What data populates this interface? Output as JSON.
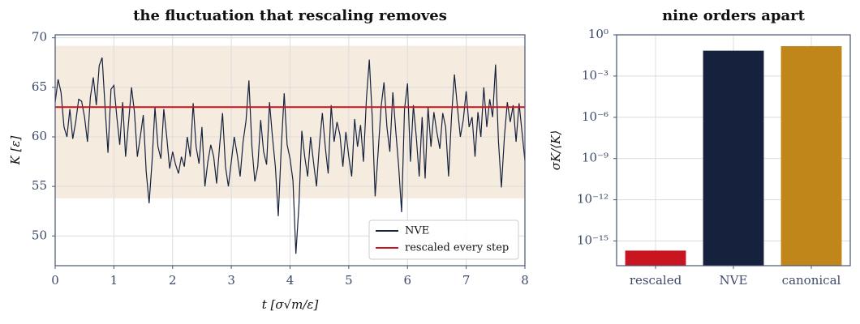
{
  "chart_data": [
    {
      "type": "line",
      "title": "the fluctuation that rescaling removes",
      "x_label": "t [σ√m/ε]",
      "y_label": "K [ε]",
      "xlim": [
        0,
        8
      ],
      "xticks": [
        0,
        1,
        2,
        3,
        4,
        5,
        6,
        7,
        8
      ],
      "ylim": [
        47,
        70.3
      ],
      "yticks": [
        50,
        55,
        60,
        65,
        70
      ],
      "grid": true,
      "legend": "lower right",
      "band": [
        53.8,
        69.2
      ],
      "band_color": "#f5ecdf",
      "x": [
        0,
        0.05,
        0.1,
        0.15,
        0.2,
        0.25,
        0.3,
        0.35,
        0.4,
        0.45,
        0.5,
        0.55,
        0.6,
        0.65,
        0.7,
        0.75,
        0.8,
        0.85,
        0.9,
        0.95,
        1,
        1.05,
        1.1,
        1.15,
        1.2,
        1.25,
        1.3,
        1.35,
        1.4,
        1.45,
        1.5,
        1.55,
        1.6,
        1.65,
        1.7,
        1.75,
        1.8,
        1.85,
        1.9,
        1.95,
        2,
        2.05,
        2.1,
        2.15,
        2.2,
        2.25,
        2.3,
        2.35,
        2.4,
        2.45,
        2.5,
        2.55,
        2.6,
        2.65,
        2.7,
        2.75,
        2.8,
        2.85,
        2.9,
        2.95,
        3,
        3.05,
        3.1,
        3.15,
        3.2,
        3.25,
        3.3,
        3.35,
        3.4,
        3.45,
        3.5,
        3.55,
        3.6,
        3.65,
        3.7,
        3.75,
        3.8,
        3.85,
        3.9,
        3.95,
        4,
        4.05,
        4.1,
        4.15,
        4.2,
        4.25,
        4.3,
        4.35,
        4.4,
        4.45,
        4.5,
        4.55,
        4.6,
        4.65,
        4.7,
        4.75,
        4.8,
        4.85,
        4.9,
        4.95,
        5,
        5.05,
        5.1,
        5.15,
        5.2,
        5.25,
        5.3,
        5.35,
        5.4,
        5.45,
        5.5,
        5.55,
        5.6,
        5.65,
        5.7,
        5.75,
        5.8,
        5.85,
        5.9,
        5.95,
        6,
        6.05,
        6.1,
        6.15,
        6.2,
        6.25,
        6.3,
        6.35,
        6.4,
        6.45,
        6.5,
        6.55,
        6.6,
        6.65,
        6.7,
        6.75,
        6.8,
        6.85,
        6.9,
        6.95,
        7,
        7.05,
        7.1,
        7.15,
        7.2,
        7.25,
        7.3,
        7.35,
        7.4,
        7.45,
        7.5,
        7.55,
        7.6,
        7.65,
        7.7,
        7.75,
        7.8,
        7.85,
        7.9,
        7.95,
        8
      ],
      "series": [
        {
          "name": "NVE",
          "color": "#16213e",
          "values": [
            63.5,
            65.8,
            64.5,
            61.0,
            60.0,
            62.8,
            59.8,
            61.5,
            63.8,
            63.6,
            62.0,
            59.5,
            64.0,
            66.0,
            63.2,
            67.2,
            68.0,
            63.0,
            58.4,
            64.8,
            65.2,
            62.0,
            59.2,
            63.5,
            58.0,
            61.5,
            65.0,
            62.5,
            58.0,
            60.0,
            62.2,
            56.5,
            53.3,
            57.5,
            63.0,
            59.0,
            57.8,
            62.8,
            60.0,
            56.8,
            58.5,
            57.2,
            56.3,
            58.0,
            57.0,
            60.0,
            58.0,
            63.4,
            59.0,
            57.3,
            61.0,
            55.0,
            57.5,
            59.2,
            58.0,
            55.3,
            59.0,
            62.4,
            57.0,
            55.0,
            57.5,
            60.0,
            58.2,
            56.0,
            59.5,
            61.6,
            65.7,
            59.0,
            55.5,
            57.0,
            61.7,
            58.5,
            57.2,
            63.5,
            60.0,
            57.0,
            52.0,
            58.8,
            64.4,
            59.2,
            57.8,
            55.6,
            48.2,
            53.0,
            60.6,
            58.0,
            56.0,
            60.0,
            57.4,
            55.0,
            59.2,
            62.4,
            59.0,
            56.3,
            63.2,
            59.5,
            61.5,
            60.2,
            57.0,
            60.5,
            58.0,
            56.0,
            61.8,
            59.0,
            61.2,
            57.5,
            63.8,
            67.8,
            62.0,
            54.0,
            58.5,
            63.0,
            65.5,
            61.0,
            58.5,
            64.5,
            60.6,
            57.0,
            52.4,
            62.8,
            65.4,
            57.5,
            63.2,
            60.0,
            56.0,
            62.0,
            55.8,
            63.0,
            59.0,
            62.5,
            60.5,
            58.8,
            62.4,
            61.0,
            56.0,
            62.0,
            66.3,
            63.0,
            60.0,
            61.7,
            64.6,
            61.0,
            62.0,
            58.0,
            62.5,
            60.0,
            65.0,
            61.0,
            63.8,
            62.0,
            67.3,
            59.5,
            54.9,
            60.0,
            63.5,
            61.5,
            63.2,
            59.5,
            63.4,
            60.5,
            57.6
          ]
        },
        {
          "name": "rescaled every step",
          "color": "#c8151f",
          "x": [
            0,
            8
          ],
          "values": [
            63,
            63
          ]
        }
      ]
    },
    {
      "type": "bar",
      "title": "nine orders apart",
      "y_label": "σK/⟨K⟩",
      "log_scale": true,
      "grid": true,
      "categories": [
        "rescaled",
        "NVE",
        "canonical"
      ],
      "values": [
        2e-16,
        0.07,
        0.15
      ],
      "colors": [
        "#c8151f",
        "#16213e",
        "#c0861a"
      ],
      "ylim": [
        1.6e-17,
        1
      ],
      "yticks": [
        {
          "value": 1,
          "label": "10⁰"
        },
        {
          "value": 0.001,
          "label": "10⁻³"
        },
        {
          "value": 1e-06,
          "label": "10⁻⁶"
        },
        {
          "value": 1e-09,
          "label": "10⁻⁹"
        },
        {
          "value": 1e-12,
          "label": "10⁻¹²"
        },
        {
          "value": 1e-15,
          "label": "10⁻¹⁵"
        }
      ]
    }
  ]
}
